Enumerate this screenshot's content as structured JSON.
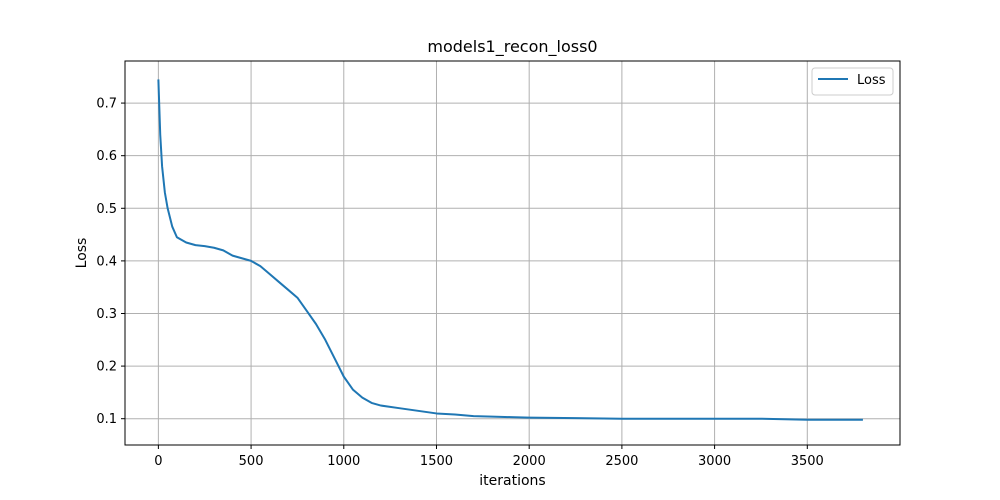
{
  "chart_data": {
    "type": "line",
    "title": "models1_recon_loss0",
    "xlabel": "iterations",
    "ylabel": "Loss",
    "xlim": [
      -180,
      4000
    ],
    "ylim": [
      0.05,
      0.78
    ],
    "xticks": [
      0,
      500,
      1000,
      1500,
      2000,
      2500,
      3000,
      3500
    ],
    "yticks": [
      0.1,
      0.2,
      0.3,
      0.4,
      0.5,
      0.6,
      0.7
    ],
    "grid": true,
    "legend": {
      "placement": "top-right",
      "entries": [
        "Loss"
      ]
    },
    "series": [
      {
        "name": "Loss",
        "color": "#1f77b4",
        "x": [
          0,
          10,
          20,
          35,
          50,
          75,
          100,
          150,
          200,
          250,
          300,
          350,
          400,
          450,
          500,
          550,
          600,
          650,
          700,
          750,
          800,
          850,
          900,
          950,
          1000,
          1050,
          1100,
          1150,
          1200,
          1300,
          1400,
          1500,
          1600,
          1700,
          1800,
          1900,
          2000,
          2250,
          2500,
          2750,
          3000,
          3250,
          3500,
          3800
        ],
        "y": [
          0.745,
          0.64,
          0.58,
          0.53,
          0.5,
          0.465,
          0.445,
          0.435,
          0.43,
          0.428,
          0.425,
          0.42,
          0.41,
          0.405,
          0.4,
          0.39,
          0.375,
          0.36,
          0.345,
          0.33,
          0.305,
          0.28,
          0.25,
          0.215,
          0.18,
          0.155,
          0.14,
          0.13,
          0.125,
          0.12,
          0.115,
          0.11,
          0.108,
          0.105,
          0.104,
          0.103,
          0.102,
          0.101,
          0.1,
          0.1,
          0.1,
          0.1,
          0.098,
          0.098
        ]
      }
    ]
  }
}
